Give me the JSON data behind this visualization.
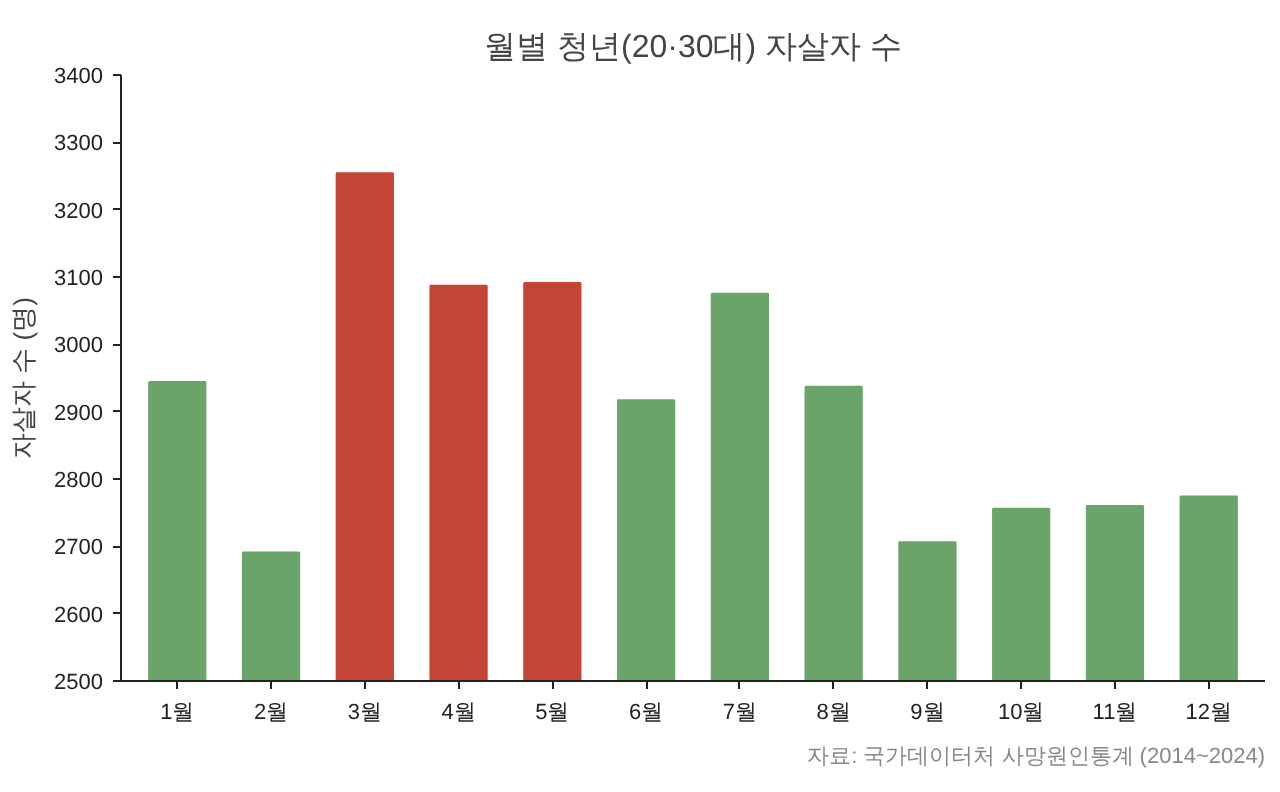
{
  "chart_data": {
    "type": "bar",
    "title": "월별 청년(20·30대) 자살자 수",
    "ylabel": "자살자 수 (명)",
    "categories": [
      "1월",
      "2월",
      "3월",
      "4월",
      "5월",
      "6월",
      "7월",
      "8월",
      "9월",
      "10월",
      "11월",
      "12월"
    ],
    "values": [
      2944,
      2691,
      3254,
      3087,
      3091,
      2917,
      3075,
      2937,
      2706,
      2756,
      2760,
      2774
    ],
    "colors": [
      "#6aa469",
      "#6aa469",
      "#c44536",
      "#c44536",
      "#c44536",
      "#6aa469",
      "#6aa469",
      "#6aa469",
      "#6aa469",
      "#6aa469",
      "#6aa469",
      "#6aa469"
    ],
    "ylim": [
      2500,
      3400
    ],
    "yticks": [
      2500,
      2600,
      2700,
      2800,
      2900,
      3000,
      3100,
      3200,
      3300,
      3400
    ],
    "grid": false,
    "annotations": [
      "자료: 국가데이터처 사망원인통계 (2014~2024)"
    ]
  }
}
